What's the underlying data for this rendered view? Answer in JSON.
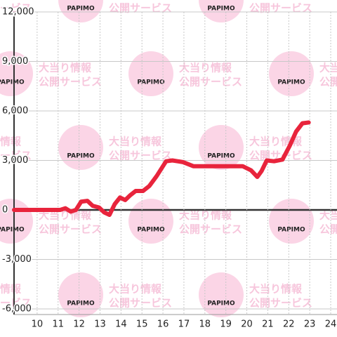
{
  "chart_data": {
    "type": "line",
    "watermark": {
      "brand": "PAPIMO",
      "lines": [
        "大当り情報",
        "公開サービス"
      ]
    },
    "x": [
      8.9,
      11.1,
      11.35,
      11.6,
      11.85,
      12.1,
      12.4,
      12.65,
      12.95,
      13.2,
      13.45,
      13.7,
      13.95,
      14.2,
      14.45,
      14.7,
      15.05,
      15.35,
      15.7,
      16.15,
      16.45,
      16.95,
      17.45,
      18.3,
      19.8,
      20.2,
      20.5,
      20.7,
      20.95,
      21.3,
      21.7,
      22.05,
      22.35,
      22.65,
      22.95
    ],
    "series": [
      {
        "color": "#e8243c",
        "values": [
          0,
          0,
          100,
          -100,
          0,
          500,
          550,
          250,
          150,
          -150,
          -300,
          350,
          750,
          600,
          900,
          1150,
          1150,
          1450,
          2050,
          2950,
          3000,
          2900,
          2650,
          2650,
          2650,
          2400,
          2000,
          2350,
          3000,
          2950,
          3050,
          3900,
          4750,
          5250,
          5300
        ]
      }
    ],
    "xlim": [
      8.9,
      24.3
    ],
    "xticks": [
      10,
      11,
      12,
      13,
      14,
      15,
      16,
      17,
      18,
      19,
      20,
      21,
      22,
      23,
      24
    ],
    "ylim": [
      -6000,
      12000
    ],
    "yticks": [
      {
        "value": -6000,
        "label": "-6,000"
      },
      {
        "value": -3000,
        "label": "-3,000"
      },
      0,
      {
        "value": 3000,
        "label": "3,000"
      },
      {
        "value": 6000,
        "label": "6,000"
      },
      {
        "value": 9000,
        "label": "9,000"
      },
      {
        "value": 12000,
        "label": "12,000"
      }
    ],
    "grid": true
  }
}
